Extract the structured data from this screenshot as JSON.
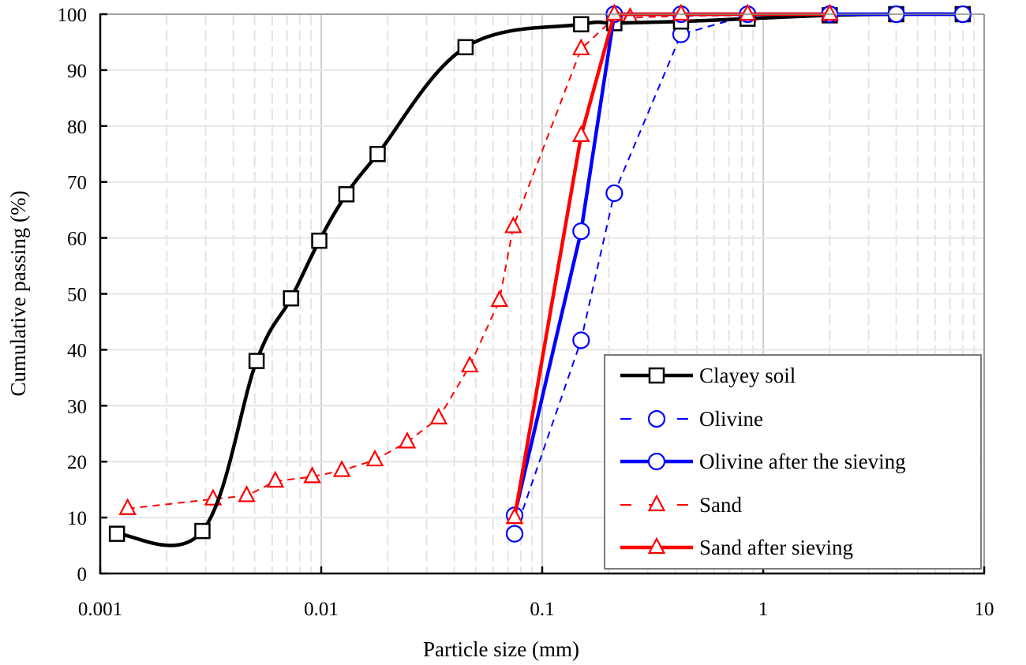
{
  "chart_data": {
    "type": "line",
    "title": "",
    "xlabel": "Particle size (mm)",
    "ylabel": "Cumulative passing (%)",
    "xscale": "log",
    "xlim": [
      0.001,
      10
    ],
    "ylim": [
      0,
      100
    ],
    "xticks": [
      0.001,
      0.01,
      0.1,
      1,
      10
    ],
    "xtick_labels": [
      "0.001",
      "0.01",
      "0.1",
      "1",
      "10"
    ],
    "yticks": [
      0,
      10,
      20,
      30,
      40,
      50,
      60,
      70,
      80,
      90,
      100
    ],
    "ytick_labels": [
      "0",
      "10",
      "20",
      "30",
      "40",
      "50",
      "60",
      "70",
      "80",
      "90",
      "100"
    ],
    "grid": true,
    "legend_position": "bottom-right",
    "series": [
      {
        "name": "Clayey soil",
        "color": "#000000",
        "line_style": "solid",
        "marker": "square",
        "smooth": true,
        "x": [
          0.00119,
          0.0029,
          0.0051,
          0.0073,
          0.0098,
          0.013,
          0.018,
          0.045,
          0.15,
          0.212,
          0.425,
          0.85,
          2,
          4,
          8
        ],
        "y": [
          7.1,
          7.6,
          38.0,
          49.2,
          59.5,
          67.8,
          75.0,
          94.1,
          98.2,
          98.4,
          98.7,
          99.2,
          99.8,
          100,
          100
        ]
      },
      {
        "name": "Olivine",
        "color": "#0000FF",
        "line_style": "dashed",
        "marker": "circle",
        "smooth": false,
        "x": [
          0.075,
          0.15,
          0.212,
          0.425,
          0.85,
          2,
          4,
          8
        ],
        "y": [
          7.1,
          41.7,
          68.0,
          96.4,
          99.8,
          100,
          100,
          100
        ]
      },
      {
        "name": "Olivine after the sieving",
        "color": "#0000FF",
        "line_style": "solid",
        "marker": "circle",
        "smooth": false,
        "x": [
          0.075,
          0.15,
          0.212,
          0.425,
          0.85,
          2,
          4,
          8
        ],
        "y": [
          10.4,
          61.2,
          100,
          100,
          100,
          100,
          100,
          100
        ]
      },
      {
        "name": "Sand",
        "color": "#FF0000",
        "line_style": "dashed",
        "marker": "triangle",
        "smooth": false,
        "x": [
          0.00133,
          0.00324,
          0.0046,
          0.0062,
          0.0091,
          0.0124,
          0.0175,
          0.0245,
          0.034,
          0.047,
          0.064,
          0.074,
          0.15,
          0.212,
          0.25,
          0.425,
          0.85,
          2
        ],
        "y": [
          11.6,
          13.3,
          13.9,
          16.5,
          17.3,
          18.4,
          20.3,
          23.5,
          27.8,
          37.1,
          48.8,
          62.0,
          93.8,
          99.3,
          99.4,
          99.7,
          99.8,
          100
        ]
      },
      {
        "name": "Sand after sieving",
        "color": "#FF0000",
        "line_style": "solid",
        "marker": "triangle",
        "smooth": false,
        "x": [
          0.075,
          0.15,
          0.212,
          0.425,
          0.85,
          2
        ],
        "y": [
          10.0,
          78.3,
          100,
          100,
          100,
          100
        ]
      }
    ]
  }
}
